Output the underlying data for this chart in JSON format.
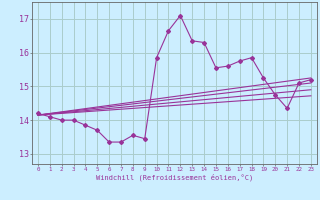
{
  "xlabel": "Windchill (Refroidissement éolien,°C)",
  "bg_color": "#cceeff",
  "grid_color": "#aacccc",
  "line_color": "#993399",
  "spine_color": "#666666",
  "x_ticks": [
    0,
    1,
    2,
    3,
    4,
    5,
    6,
    7,
    8,
    9,
    10,
    11,
    12,
    13,
    14,
    15,
    16,
    17,
    18,
    19,
    20,
    21,
    22,
    23
  ],
  "y_ticks": [
    13,
    14,
    15,
    16,
    17
  ],
  "xlim": [
    -0.5,
    23.5
  ],
  "ylim": [
    12.7,
    17.5
  ],
  "main_series_x": [
    0,
    1,
    2,
    3,
    4,
    5,
    6,
    7,
    8,
    9,
    10,
    11,
    12,
    13,
    14,
    15,
    16,
    17,
    18,
    19,
    20,
    21,
    22,
    23
  ],
  "main_series_y": [
    14.2,
    14.1,
    14.0,
    14.0,
    13.85,
    13.7,
    13.35,
    13.35,
    13.55,
    13.45,
    15.85,
    16.65,
    17.1,
    16.35,
    16.3,
    15.55,
    15.6,
    15.75,
    15.85,
    15.25,
    14.75,
    14.35,
    15.1,
    15.2
  ],
  "line1_x": [
    0,
    23
  ],
  "line1_y": [
    14.15,
    15.25
  ],
  "line2_x": [
    0,
    23
  ],
  "line2_y": [
    14.15,
    15.1
  ],
  "line3_x": [
    0,
    23
  ],
  "line3_y": [
    14.15,
    14.9
  ],
  "line4_x": [
    0,
    23
  ],
  "line4_y": [
    14.15,
    14.72
  ]
}
